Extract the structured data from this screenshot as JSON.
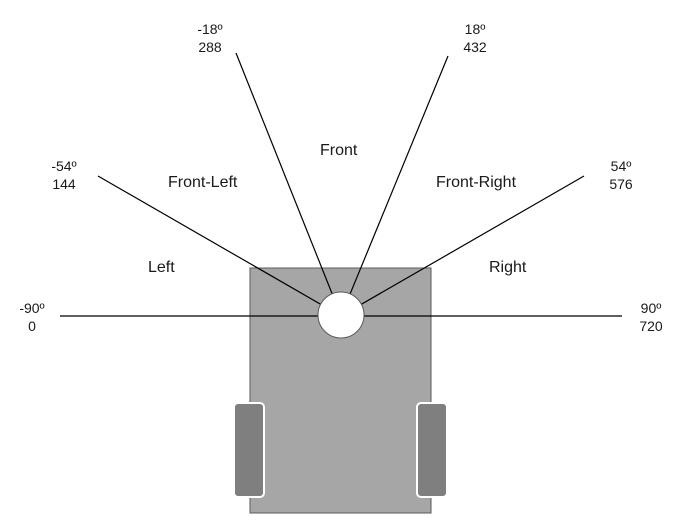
{
  "rays": [
    {
      "id": "left-0",
      "angle": "-90º",
      "value": "0"
    },
    {
      "id": "left-144",
      "angle": "-54º",
      "value": "144"
    },
    {
      "id": "left-288",
      "angle": "-18º",
      "value": "288"
    },
    {
      "id": "right-432",
      "angle": "18º",
      "value": "432"
    },
    {
      "id": "right-576",
      "angle": "54º",
      "value": "576"
    },
    {
      "id": "right-720",
      "angle": "90º",
      "value": "720"
    }
  ],
  "zones": {
    "front": "Front",
    "front_left": "Front-Left",
    "front_right": "Front-Right",
    "left": "Left",
    "right": "Right"
  },
  "colors": {
    "body": "#a6a6a6",
    "wheel": "#7f7f7f",
    "sensor": "#ffffff",
    "outline": "#5a5a5a",
    "line": "#000000"
  }
}
